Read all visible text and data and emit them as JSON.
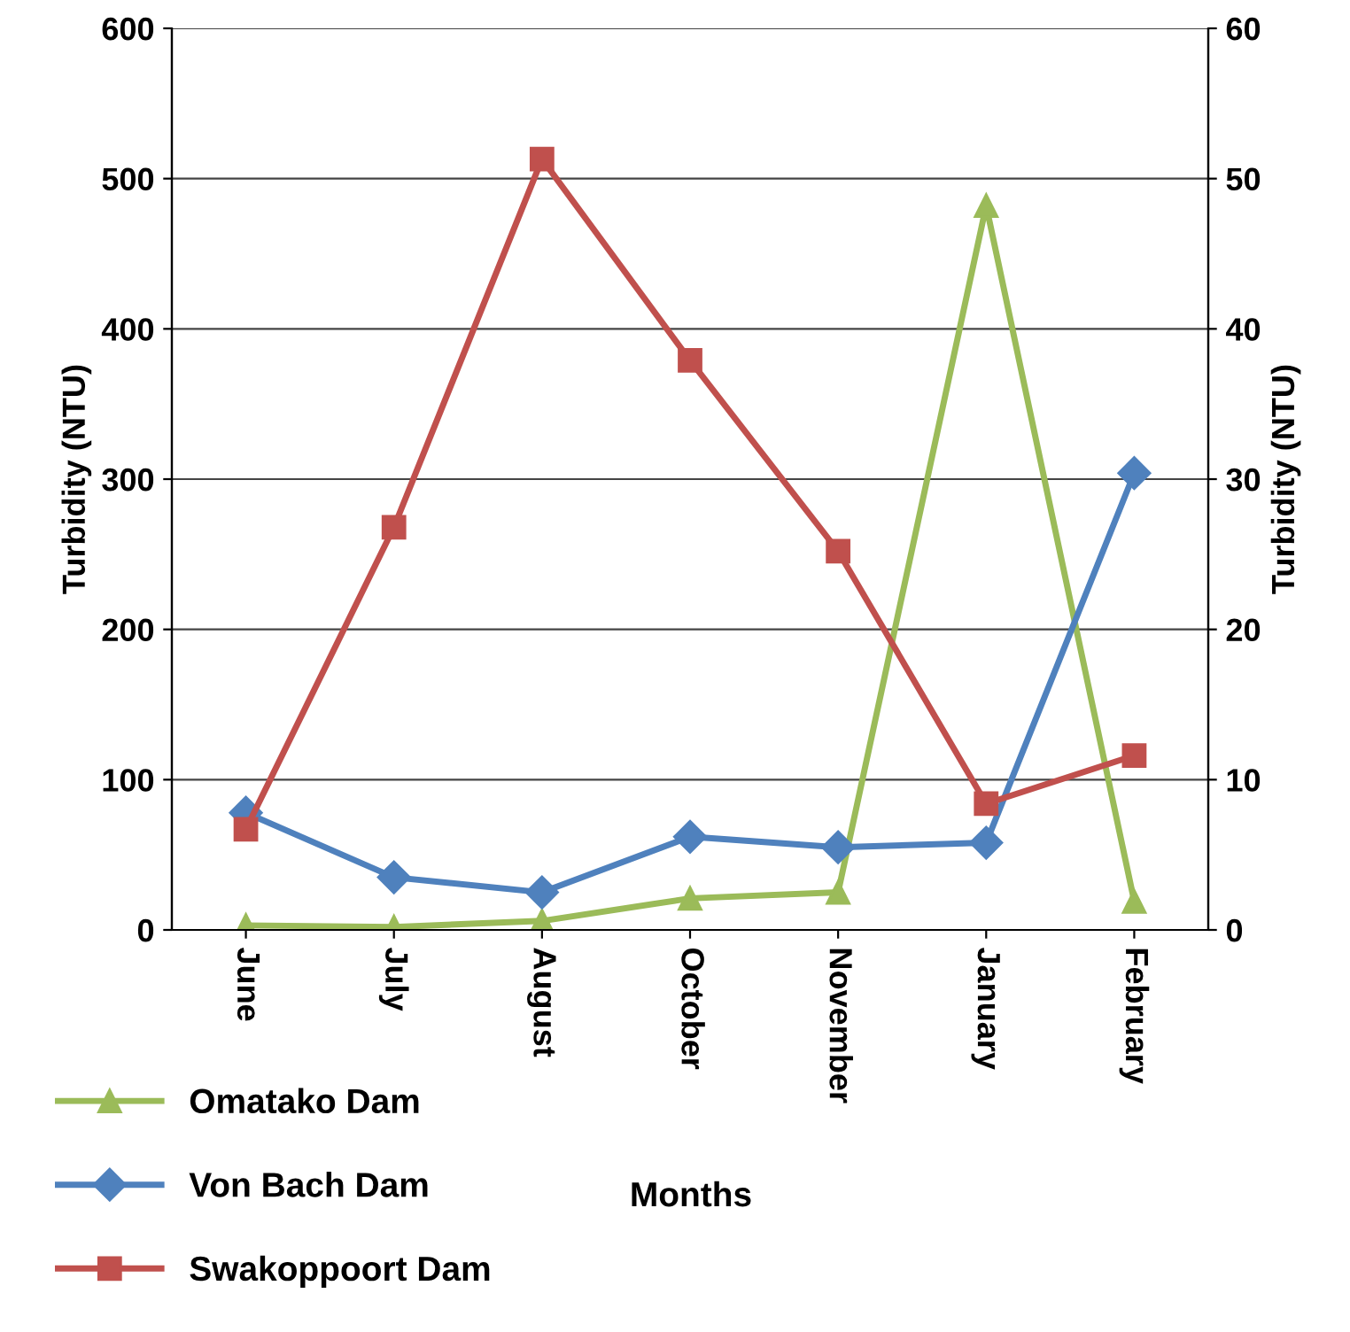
{
  "chart_data": {
    "type": "line",
    "xlabel": "Months",
    "ylabel": "Turbidity (NTU)",
    "y2label": "Turbidity (NTU)",
    "categories": [
      "June",
      "July",
      "August",
      "October",
      "November",
      "January",
      "February"
    ],
    "series": [
      {
        "name": "Omatako Dam",
        "color": "#9bbb59",
        "marker": "triangle",
        "values": [
          3,
          2,
          6,
          21,
          25,
          482,
          19
        ]
      },
      {
        "name": "Von Bach Dam",
        "color": "#4f81bd",
        "marker": "diamond",
        "values": [
          78,
          35,
          25,
          62,
          55,
          58,
          304
        ]
      },
      {
        "name": "Swakoppoort Dam",
        "color": "#c0504d",
        "marker": "square",
        "values": [
          67,
          268,
          513,
          379,
          252,
          84,
          116
        ]
      }
    ],
    "ylim": [
      0,
      600
    ],
    "yticks": [
      0,
      100,
      200,
      300,
      400,
      500,
      600
    ],
    "y2lim": [
      0,
      60
    ],
    "y2ticks": [
      0,
      10,
      20,
      30,
      40,
      50,
      60
    ],
    "grid": "y",
    "legend": "bottom left",
    "line_style": "solid"
  }
}
